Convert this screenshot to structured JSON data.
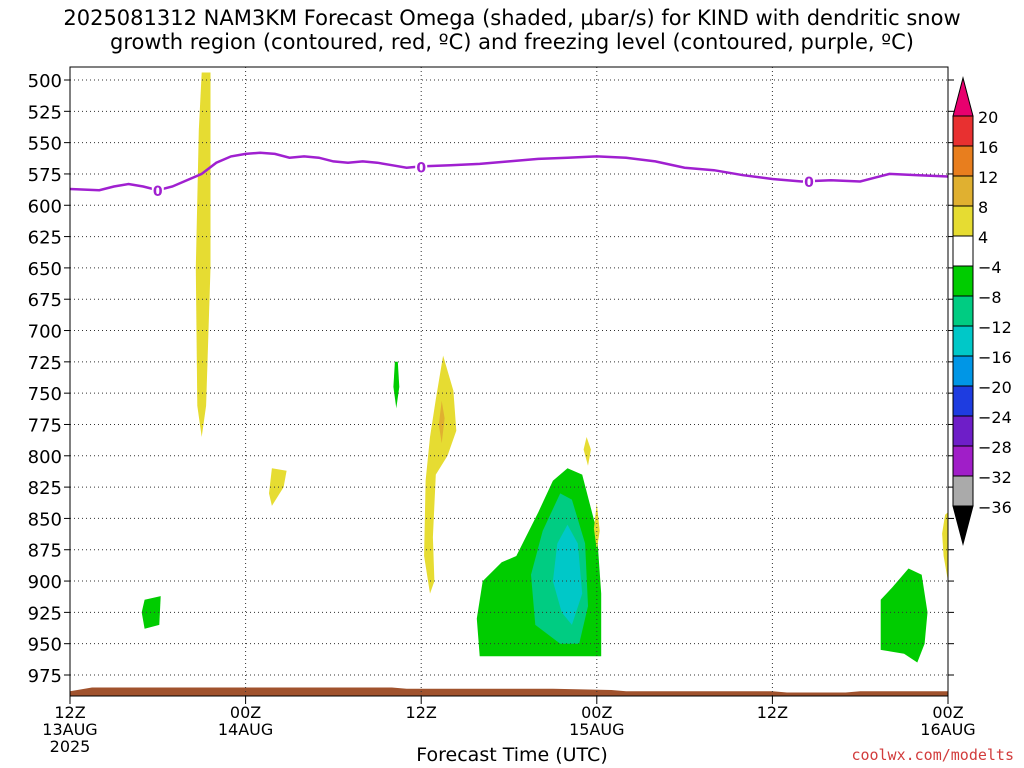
{
  "chart_data": {
    "type": "heatmap",
    "title_line1": "2025081312 NAM3KM Forecast Omega (shaded, µbar/s) for KIND with dendritic snow",
    "title_line2": "growth region (contoured, red, ºC) and freezing level (contoured, purple, ºC)",
    "xlabel": "Forecast Time (UTC)",
    "credit": "coolwx.com/modelts",
    "y_ticks": [
      500,
      525,
      550,
      575,
      600,
      625,
      650,
      675,
      700,
      725,
      750,
      775,
      800,
      825,
      850,
      875,
      900,
      925,
      950,
      975
    ],
    "ylim": [
      494,
      1000
    ],
    "xlim": [
      0,
      60
    ],
    "x_ticks": [
      {
        "hour": 0,
        "line1": "12Z",
        "line2": "13AUG",
        "line3": "2025"
      },
      {
        "hour": 12,
        "line1": "00Z",
        "line2": "14AUG",
        "line3": ""
      },
      {
        "hour": 24,
        "line1": "12Z",
        "line2": "",
        "line3": ""
      },
      {
        "hour": 36,
        "line1": "00Z",
        "line2": "15AUG",
        "line3": ""
      },
      {
        "hour": 48,
        "line1": "12Z",
        "line2": "",
        "line3": ""
      },
      {
        "hour": 60,
        "line1": "00Z",
        "line2": "16AUG",
        "line3": ""
      }
    ],
    "colorbar": {
      "labels": [
        "20",
        "16",
        "12",
        "8",
        "4",
        "−4",
        "−8",
        "−12",
        "−16",
        "−20",
        "−24",
        "−28",
        "−32",
        "−36"
      ],
      "colors": [
        "#e8006e",
        "#e83030",
        "#e87e1e",
        "#e0b030",
        "#e6dc32",
        "#ffffff",
        "#00cc00",
        "#00cc82",
        "#00c8c8",
        "#0096e6",
        "#1e3ce0",
        "#6e1ec8",
        "#a01ec8",
        "#aaaaaa",
        "#000000"
      ]
    },
    "freezing_level": {
      "label": "0",
      "color": "#a020d0",
      "points": [
        [
          0,
          587
        ],
        [
          2,
          588
        ],
        [
          3,
          585
        ],
        [
          4,
          583
        ],
        [
          5,
          585
        ],
        [
          6,
          588
        ],
        [
          7,
          585
        ],
        [
          9,
          575
        ],
        [
          10,
          566
        ],
        [
          11,
          561
        ],
        [
          12,
          559
        ],
        [
          13,
          558
        ],
        [
          14,
          559
        ],
        [
          15,
          562
        ],
        [
          16,
          561
        ],
        [
          17,
          562
        ],
        [
          18,
          565
        ],
        [
          19,
          566
        ],
        [
          20,
          565
        ],
        [
          21,
          566
        ],
        [
          22,
          568
        ],
        [
          23,
          570
        ],
        [
          24,
          569
        ],
        [
          26,
          568
        ],
        [
          28,
          567
        ],
        [
          30,
          565
        ],
        [
          32,
          563
        ],
        [
          34,
          562
        ],
        [
          36,
          561
        ],
        [
          38,
          562
        ],
        [
          40,
          565
        ],
        [
          42,
          570
        ],
        [
          44,
          572
        ],
        [
          46,
          576
        ],
        [
          48,
          579
        ],
        [
          49,
          580
        ],
        [
          50,
          581
        ],
        [
          52,
          580
        ],
        [
          54,
          581
        ],
        [
          55,
          578
        ],
        [
          56,
          575
        ],
        [
          58,
          576
        ],
        [
          60,
          577
        ]
      ],
      "label_hours": [
        6,
        24,
        50.5
      ]
    },
    "omega_regions": [
      {
        "value": 5,
        "color": "#e6dc32",
        "points": [
          [
            9,
            494
          ],
          [
            9.6,
            494
          ],
          [
            9.6,
            650
          ],
          [
            9.3,
            760
          ],
          [
            9.0,
            785
          ],
          [
            8.7,
            760
          ],
          [
            8.6,
            650
          ],
          [
            8.8,
            540
          ]
        ]
      },
      {
        "value": 5,
        "color": "#e6dc32",
        "points": [
          [
            13.8,
            810
          ],
          [
            14.8,
            812
          ],
          [
            14.6,
            825
          ],
          [
            13.8,
            840
          ],
          [
            13.6,
            830
          ]
        ]
      },
      {
        "value": -6,
        "color": "#00cc00",
        "points": [
          [
            22.2,
            725
          ],
          [
            22.4,
            725
          ],
          [
            22.5,
            745
          ],
          [
            22.3,
            762
          ],
          [
            22.1,
            745
          ]
        ]
      },
      {
        "value": 5,
        "color": "#e6dc32",
        "points": [
          [
            25.5,
            720
          ],
          [
            26.2,
            748
          ],
          [
            26.4,
            780
          ],
          [
            25.8,
            800
          ],
          [
            25.0,
            815
          ],
          [
            24.8,
            865
          ],
          [
            24.9,
            900
          ],
          [
            24.6,
            910
          ],
          [
            24.2,
            880
          ],
          [
            24.3,
            820
          ],
          [
            24.6,
            785
          ],
          [
            25.0,
            755
          ]
        ]
      },
      {
        "value": 9,
        "color": "#e0b030",
        "points": [
          [
            25.4,
            756
          ],
          [
            25.6,
            770
          ],
          [
            25.4,
            790
          ],
          [
            25.2,
            775
          ]
        ]
      },
      {
        "value": -6,
        "color": "#00cc00",
        "points": [
          [
            34.0,
            810
          ],
          [
            35.0,
            815
          ],
          [
            36.0,
            860
          ],
          [
            36.3,
            910
          ],
          [
            36.3,
            960
          ],
          [
            28.0,
            960
          ],
          [
            27.8,
            930
          ],
          [
            28.2,
            900
          ],
          [
            29.5,
            885
          ],
          [
            30.5,
            880
          ],
          [
            32.0,
            845
          ],
          [
            33.0,
            820
          ]
        ]
      },
      {
        "value": -10,
        "color": "#00cc82",
        "points": [
          [
            33.5,
            830
          ],
          [
            34.3,
            835
          ],
          [
            35.2,
            870
          ],
          [
            35.4,
            920
          ],
          [
            34.8,
            950
          ],
          [
            33.5,
            950
          ],
          [
            31.8,
            935
          ],
          [
            31.5,
            895
          ],
          [
            32.3,
            860
          ]
        ]
      },
      {
        "value": -14,
        "color": "#00c8c8",
        "points": [
          [
            34.0,
            855
          ],
          [
            34.7,
            870
          ],
          [
            35.0,
            910
          ],
          [
            34.3,
            935
          ],
          [
            33.6,
            925
          ],
          [
            33.0,
            900
          ],
          [
            33.3,
            870
          ]
        ]
      },
      {
        "value": 5,
        "color": "#e6dc32",
        "points": [
          [
            35.3,
            785
          ],
          [
            35.6,
            795
          ],
          [
            35.4,
            808
          ],
          [
            35.1,
            795
          ]
        ]
      },
      {
        "value": 5,
        "color": "#e6dc32",
        "points": [
          [
            36.0,
            838
          ],
          [
            36.2,
            860
          ],
          [
            36.0,
            875
          ],
          [
            35.8,
            858
          ]
        ]
      },
      {
        "value": -6,
        "color": "#00cc00",
        "points": [
          [
            5.1,
            915
          ],
          [
            6.2,
            912
          ],
          [
            6.1,
            935
          ],
          [
            5.1,
            938
          ],
          [
            4.9,
            925
          ]
        ]
      },
      {
        "value": -6,
        "color": "#00cc00",
        "points": [
          [
            57.3,
            890
          ],
          [
            58.2,
            895
          ],
          [
            58.6,
            925
          ],
          [
            58.4,
            950
          ],
          [
            57.9,
            965
          ],
          [
            57.0,
            958
          ],
          [
            55.4,
            955
          ],
          [
            55.4,
            915
          ],
          [
            56.2,
            905
          ]
        ]
      },
      {
        "value": 5,
        "color": "#e6dc32",
        "points": [
          [
            59.8,
            847
          ],
          [
            60,
            845
          ],
          [
            60,
            900
          ],
          [
            59.7,
            880
          ],
          [
            59.6,
            862
          ]
        ]
      }
    ],
    "terrain": {
      "color": "#a0522d",
      "points": [
        [
          0,
          988
        ],
        [
          1.5,
          985
        ],
        [
          5,
          985
        ],
        [
          10,
          985
        ],
        [
          15,
          985
        ],
        [
          22,
          985
        ],
        [
          23,
          986
        ],
        [
          26,
          986
        ],
        [
          33,
          986
        ],
        [
          37,
          987
        ],
        [
          38,
          988
        ],
        [
          48,
          988
        ],
        [
          49,
          989
        ],
        [
          53,
          989
        ],
        [
          54,
          988
        ],
        [
          60,
          988
        ]
      ]
    },
    "grid": true,
    "legend": "right"
  }
}
